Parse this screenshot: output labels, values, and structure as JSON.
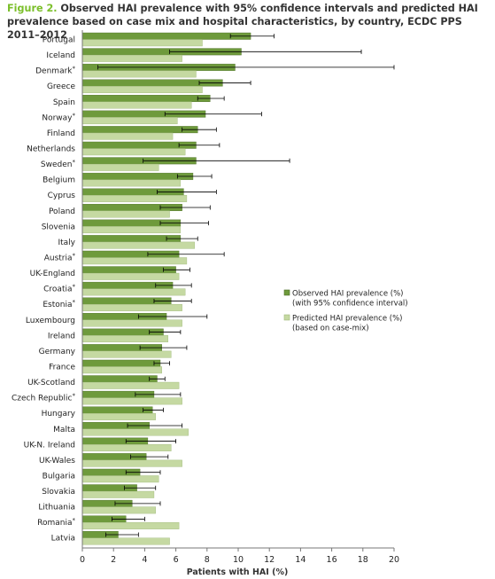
{
  "figure": {
    "label": "Figure 2.",
    "title": "Observed HAI prevalence with 95% confidence intervals and predicted HAI prevalence based on case mix and hospital characteristics, by country, ECDC PPS 2011–2012"
  },
  "colors": {
    "observed": "#6e9a3c",
    "predicted": "#c5d9a2",
    "bar_stroke": "#4d6e28",
    "axis": "#777777",
    "errorbar": "#000000",
    "title_label": "#7bbf2a"
  },
  "chart_data": {
    "type": "bar",
    "orientation": "horizontal",
    "xlabel": "Patients with HAI (%)",
    "xlim": [
      0,
      20
    ],
    "xticks": [
      "0",
      "2",
      "4",
      "6",
      "8",
      "10",
      "12",
      "14",
      "16",
      "18",
      "20"
    ],
    "grid": false,
    "legend_placement": "right",
    "categories": [
      "Portugal",
      "Iceland",
      "Denmark*",
      "Greece",
      "Spain",
      "Norway*",
      "Finland",
      "Netherlands",
      "Sweden*",
      "Belgium",
      "Cyprus",
      "Poland",
      "Slovenia",
      "Italy",
      "Austria*",
      "UK-England",
      "Croatia*",
      "Estonia*",
      "Luxembourg",
      "Ireland",
      "Germany",
      "France",
      "UK-Scotland",
      "Czech Republic*",
      "Hungary",
      "Malta",
      "UK-N. Ireland",
      "UK-Wales",
      "Bulgaria",
      "Slovakia",
      "Lithuania",
      "Romania*",
      "Latvia"
    ],
    "series": [
      {
        "name": "Observed HAI prevalence (%)\n(with 95% confidence interval)",
        "values": [
          10.8,
          10.2,
          9.8,
          9.0,
          8.2,
          7.9,
          7.4,
          7.3,
          7.3,
          7.1,
          6.5,
          6.4,
          6.3,
          6.3,
          6.2,
          6.0,
          5.8,
          5.7,
          5.4,
          5.2,
          5.1,
          5.0,
          4.8,
          4.6,
          4.5,
          4.3,
          4.2,
          4.1,
          3.7,
          3.5,
          3.2,
          2.8,
          2.3
        ],
        "ci_low": [
          9.5,
          5.6,
          1.0,
          7.5,
          7.4,
          5.3,
          6.4,
          6.2,
          3.9,
          6.1,
          4.8,
          5.0,
          5.0,
          5.4,
          4.2,
          5.2,
          4.7,
          4.6,
          3.6,
          4.3,
          3.7,
          4.6,
          4.3,
          3.4,
          3.9,
          2.9,
          2.8,
          3.1,
          2.8,
          2.7,
          2.1,
          1.9,
          1.5
        ],
        "ci_high": [
          12.3,
          17.9,
          20.0,
          10.8,
          9.1,
          11.5,
          8.6,
          8.8,
          13.3,
          8.3,
          8.6,
          8.2,
          8.1,
          7.4,
          9.1,
          6.9,
          7.0,
          7.0,
          8.0,
          6.3,
          6.7,
          5.6,
          5.3,
          6.3,
          5.2,
          6.4,
          6.0,
          5.5,
          5.0,
          4.7,
          5.0,
          4.0,
          3.6
        ]
      },
      {
        "name": "Predicted HAI prevalence (%)\n(based on case-mix)",
        "values": [
          7.7,
          6.4,
          7.3,
          7.7,
          7.0,
          6.1,
          5.8,
          6.6,
          4.9,
          6.3,
          6.7,
          5.6,
          6.3,
          7.2,
          6.7,
          6.2,
          6.6,
          6.4,
          6.4,
          5.5,
          5.7,
          5.1,
          6.2,
          6.4,
          4.7,
          6.8,
          5.7,
          6.4,
          4.9,
          4.6,
          4.7,
          6.2,
          5.6
        ]
      }
    ]
  }
}
